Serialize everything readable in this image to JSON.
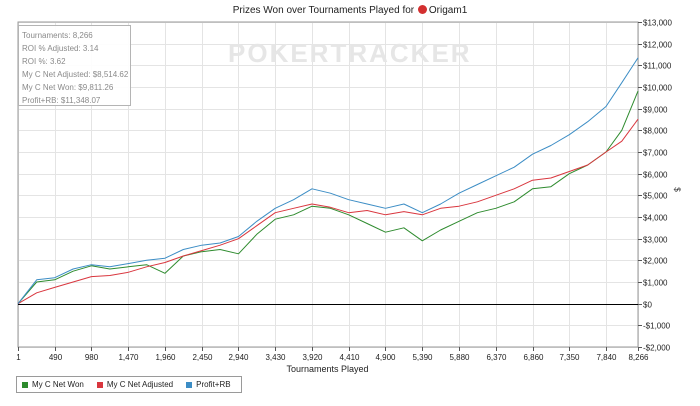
{
  "title": {
    "prefix": "Prizes Won over Tournaments Played for",
    "player": "Origam1"
  },
  "watermark": "POKERTRACKER",
  "stats": [
    "Tournaments: 8,266",
    "ROI % Adjusted: 3.14",
    "ROI %: 3.62",
    "My C Net Adjusted: $8,514.62",
    "My C Net Won: $9,811.26",
    "Profit+RB: $11,348.07"
  ],
  "colors": {
    "net_won": "#2e8b2e",
    "net_adjusted": "#d9363e",
    "profit_rb": "#3c8dc5"
  },
  "chart_data": {
    "type": "line",
    "xlabel": "Tournaments Played",
    "ylabel": "$",
    "xlim": [
      1,
      8266
    ],
    "ylim": [
      -2000,
      13000
    ],
    "x_ticks": [
      1,
      490,
      980,
      1470,
      1960,
      2450,
      2940,
      3430,
      3920,
      4410,
      4900,
      5390,
      5880,
      6370,
      6860,
      7350,
      7840,
      8266
    ],
    "x_tick_labels": [
      "1",
      "490",
      "980",
      "1,470",
      "1,960",
      "2,450",
      "2,940",
      "3,430",
      "3,920",
      "4,410",
      "4,900",
      "5,390",
      "5,880",
      "6,370",
      "6,860",
      "7,350",
      "7,840",
      "8,266"
    ],
    "y_ticks": [
      -2000,
      -1000,
      0,
      1000,
      2000,
      3000,
      4000,
      5000,
      6000,
      7000,
      8000,
      9000,
      10000,
      11000,
      12000,
      13000
    ],
    "y_tick_labels": [
      "-$2,000",
      "-$1,000",
      "$0",
      "$1,000",
      "$2,000",
      "$3,000",
      "$4,000",
      "$5,000",
      "$6,000",
      "$7,000",
      "$8,000",
      "$9,000",
      "$10,000",
      "$11,000",
      "$12,000",
      "$13,000"
    ],
    "grid": true,
    "legend_position": "bottom-left",
    "x": [
      1,
      250,
      490,
      735,
      980,
      1225,
      1470,
      1715,
      1960,
      2205,
      2450,
      2695,
      2940,
      3185,
      3430,
      3675,
      3920,
      4165,
      4410,
      4655,
      4900,
      5145,
      5390,
      5635,
      5880,
      6125,
      6370,
      6615,
      6860,
      7105,
      7350,
      7595,
      7840,
      8050,
      8266
    ],
    "series": [
      {
        "name": "My C Net Won",
        "color_key": "net_won",
        "values": [
          0,
          1000,
          1100,
          1500,
          1750,
          1600,
          1700,
          1800,
          1400,
          2200,
          2400,
          2500,
          2300,
          3200,
          3900,
          4100,
          4500,
          4400,
          4100,
          3700,
          3300,
          3500,
          2900,
          3400,
          3800,
          4200,
          4400,
          4700,
          5300,
          5400,
          6000,
          6400,
          7000,
          8000,
          9811
        ]
      },
      {
        "name": "My C Net Adjusted",
        "color_key": "net_adjusted",
        "values": [
          0,
          500,
          750,
          1000,
          1250,
          1300,
          1450,
          1700,
          1900,
          2200,
          2450,
          2700,
          3000,
          3600,
          4200,
          4400,
          4600,
          4450,
          4200,
          4300,
          4100,
          4250,
          4100,
          4400,
          4500,
          4700,
          5000,
          5300,
          5700,
          5800,
          6100,
          6400,
          7000,
          7500,
          8515
        ]
      },
      {
        "name": "Profit+RB",
        "color_key": "profit_rb",
        "values": [
          0,
          1100,
          1200,
          1600,
          1800,
          1700,
          1850,
          2000,
          2100,
          2500,
          2700,
          2800,
          3100,
          3800,
          4400,
          4800,
          5300,
          5100,
          4800,
          4600,
          4400,
          4600,
          4200,
          4600,
          5100,
          5500,
          5900,
          6300,
          6900,
          7300,
          7800,
          8400,
          9100,
          10200,
          11348
        ]
      }
    ]
  }
}
